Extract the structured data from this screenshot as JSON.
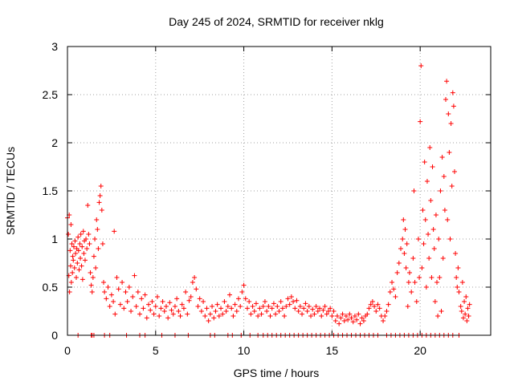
{
  "chart_data": {
    "type": "scatter",
    "title": "Day 245 of 2024, SRMTID for receiver nklg",
    "xlabel": "GPS time / hours",
    "ylabel": "SRMTID / TECUs",
    "xlim": [
      0,
      24
    ],
    "ylim": [
      0,
      3
    ],
    "xticks": [
      0,
      5,
      10,
      15,
      20
    ],
    "xtick_labels": [
      "0",
      "5",
      "10",
      "15",
      "20"
    ],
    "yticks": [
      0,
      0.5,
      1,
      1.5,
      2,
      2.5,
      3
    ],
    "ytick_labels": [
      "0",
      "0.5",
      "1",
      "1.5",
      "2",
      "2.5",
      "3"
    ],
    "grid": true,
    "marker": "+",
    "color": "#ff0000",
    "series": [
      {
        "name": "SRMTID",
        "points": [
          [
            0.0,
            1.22
          ],
          [
            0.05,
            1.05
          ],
          [
            0.08,
            0.62
          ],
          [
            0.1,
            1.25
          ],
          [
            0.12,
            0.45
          ],
          [
            0.15,
            0.88
          ],
          [
            0.18,
            0.72
          ],
          [
            0.2,
            1.15
          ],
          [
            0.22,
            0.55
          ],
          [
            0.25,
            0.95
          ],
          [
            0.28,
            0.65
          ],
          [
            0.3,
            0.82
          ],
          [
            0.33,
            0.78
          ],
          [
            0.36,
            0.92
          ],
          [
            0.4,
            0.7
          ],
          [
            0.43,
            0.98
          ],
          [
            0.46,
            0.85
          ],
          [
            0.5,
            0.6
          ],
          [
            0.53,
            0.9
          ],
          [
            0.56,
            0.75
          ],
          [
            0.6,
            1.02
          ],
          [
            0.63,
            0.88
          ],
          [
            0.66,
            0.68
          ],
          [
            0.7,
            0.95
          ],
          [
            0.73,
            0.8
          ],
          [
            0.76,
            1.05
          ],
          [
            0.8,
            0.72
          ],
          [
            0.83,
            0.92
          ],
          [
            0.86,
            0.58
          ],
          [
            0.9,
            1.08
          ],
          [
            0.93,
            0.85
          ],
          [
            0.96,
            0.98
          ],
          [
            1.0,
            0.78
          ],
          [
            1.05,
            1.0
          ],
          [
            1.1,
            0.9
          ],
          [
            1.15,
            1.35
          ],
          [
            1.2,
            1.05
          ],
          [
            1.25,
            0.95
          ],
          [
            1.3,
            0.65
          ],
          [
            1.35,
            0.52
          ],
          [
            1.4,
            0.45
          ],
          [
            1.45,
            0.6
          ],
          [
            1.5,
            0.82
          ],
          [
            1.55,
            1.0
          ],
          [
            1.6,
            0.7
          ],
          [
            1.65,
            1.2
          ],
          [
            1.7,
            1.1
          ],
          [
            1.75,
            0.9
          ],
          [
            1.8,
            1.38
          ],
          [
            1.85,
            1.45
          ],
          [
            1.9,
            1.55
          ],
          [
            1.95,
            1.3
          ],
          [
            2.0,
            0.95
          ],
          [
            2.05,
            0.55
          ],
          [
            2.1,
            0.45
          ],
          [
            2.2,
            0.38
          ],
          [
            2.3,
            0.5
          ],
          [
            2.4,
            0.3
          ],
          [
            2.5,
            0.42
          ],
          [
            2.6,
            0.35
          ],
          [
            2.65,
            1.08
          ],
          [
            2.7,
            0.22
          ],
          [
            2.8,
            0.6
          ],
          [
            2.9,
            0.48
          ],
          [
            3.0,
            0.32
          ],
          [
            3.1,
            0.55
          ],
          [
            3.2,
            0.28
          ],
          [
            3.3,
            0.45
          ],
          [
            3.4,
            0.35
          ],
          [
            3.5,
            0.5
          ],
          [
            3.6,
            0.25
          ],
          [
            3.7,
            0.4
          ],
          [
            3.8,
            0.62
          ],
          [
            3.9,
            0.3
          ],
          [
            4.0,
            0.45
          ],
          [
            4.1,
            0.22
          ],
          [
            4.2,
            0.38
          ],
          [
            4.3,
            0.28
          ],
          [
            4.4,
            0.42
          ],
          [
            4.5,
            0.18
          ],
          [
            4.6,
            0.32
          ],
          [
            4.7,
            0.26
          ],
          [
            4.8,
            0.35
          ],
          [
            4.9,
            0.22
          ],
          [
            5.0,
            0.3
          ],
          [
            5.1,
            0.4
          ],
          [
            5.2,
            0.2
          ],
          [
            5.3,
            0.28
          ],
          [
            5.4,
            0.35
          ],
          [
            5.5,
            0.25
          ],
          [
            5.6,
            0.3
          ],
          [
            5.7,
            0.18
          ],
          [
            5.8,
            0.34
          ],
          [
            5.9,
            0.26
          ],
          [
            6.0,
            0.22
          ],
          [
            6.1,
            0.3
          ],
          [
            6.2,
            0.38
          ],
          [
            6.3,
            0.25
          ],
          [
            6.4,
            0.2
          ],
          [
            6.5,
            0.32
          ],
          [
            6.6,
            0.28
          ],
          [
            6.7,
            0.45
          ],
          [
            6.8,
            0.22
          ],
          [
            6.9,
            0.36
          ],
          [
            7.0,
            0.4
          ],
          [
            7.1,
            0.55
          ],
          [
            7.2,
            0.6
          ],
          [
            7.3,
            0.48
          ],
          [
            7.4,
            0.3
          ],
          [
            7.5,
            0.38
          ],
          [
            7.6,
            0.25
          ],
          [
            7.7,
            0.35
          ],
          [
            7.8,
            0.2
          ],
          [
            7.9,
            0.28
          ],
          [
            8.0,
            0.15
          ],
          [
            8.1,
            0.22
          ],
          [
            8.2,
            0.3
          ],
          [
            8.3,
            0.18
          ],
          [
            8.4,
            0.25
          ],
          [
            8.5,
            0.32
          ],
          [
            8.6,
            0.2
          ],
          [
            8.7,
            0.28
          ],
          [
            8.8,
            0.22
          ],
          [
            8.9,
            0.35
          ],
          [
            9.0,
            0.25
          ],
          [
            9.1,
            0.3
          ],
          [
            9.2,
            0.42
          ],
          [
            9.3,
            0.28
          ],
          [
            9.4,
            0.2
          ],
          [
            9.5,
            0.32
          ],
          [
            9.6,
            0.25
          ],
          [
            9.7,
            0.38
          ],
          [
            9.8,
            0.3
          ],
          [
            9.9,
            0.45
          ],
          [
            10.0,
            0.52
          ],
          [
            10.1,
            0.38
          ],
          [
            10.2,
            0.28
          ],
          [
            10.3,
            0.35
          ],
          [
            10.4,
            0.22
          ],
          [
            10.5,
            0.3
          ],
          [
            10.6,
            0.25
          ],
          [
            10.7,
            0.33
          ],
          [
            10.8,
            0.2
          ],
          [
            10.9,
            0.28
          ],
          [
            11.0,
            0.22
          ],
          [
            11.1,
            0.3
          ],
          [
            11.2,
            0.35
          ],
          [
            11.3,
            0.25
          ],
          [
            11.4,
            0.3
          ],
          [
            11.5,
            0.2
          ],
          [
            11.6,
            0.28
          ],
          [
            11.7,
            0.33
          ],
          [
            11.8,
            0.22
          ],
          [
            11.9,
            0.3
          ],
          [
            12.0,
            0.25
          ],
          [
            12.1,
            0.35
          ],
          [
            12.2,
            0.28
          ],
          [
            12.3,
            0.2
          ],
          [
            12.4,
            0.3
          ],
          [
            12.5,
            0.38
          ],
          [
            12.6,
            0.32
          ],
          [
            12.7,
            0.4
          ],
          [
            12.8,
            0.35
          ],
          [
            12.9,
            0.28
          ],
          [
            13.0,
            0.36
          ],
          [
            13.1,
            0.25
          ],
          [
            13.2,
            0.3
          ],
          [
            13.3,
            0.22
          ],
          [
            13.4,
            0.28
          ],
          [
            13.5,
            0.33
          ],
          [
            13.6,
            0.25
          ],
          [
            13.7,
            0.3
          ],
          [
            13.8,
            0.2
          ],
          [
            13.9,
            0.27
          ],
          [
            14.0,
            0.22
          ],
          [
            14.1,
            0.3
          ],
          [
            14.2,
            0.25
          ],
          [
            14.3,
            0.28
          ],
          [
            14.4,
            0.2
          ],
          [
            14.5,
            0.26
          ],
          [
            14.6,
            0.3
          ],
          [
            14.7,
            0.22
          ],
          [
            14.8,
            0.25
          ],
          [
            14.9,
            0.28
          ],
          [
            15.0,
            0.2
          ],
          [
            15.1,
            0.25
          ],
          [
            15.2,
            0.15
          ],
          [
            15.3,
            0.2
          ],
          [
            15.4,
            0.12
          ],
          [
            15.5,
            0.18
          ],
          [
            15.6,
            0.22
          ],
          [
            15.7,
            0.15
          ],
          [
            15.8,
            0.2
          ],
          [
            15.9,
            0.16
          ],
          [
            16.0,
            0.22
          ],
          [
            16.1,
            0.18
          ],
          [
            16.2,
            0.14
          ],
          [
            16.3,
            0.2
          ],
          [
            16.4,
            0.16
          ],
          [
            16.5,
            0.22
          ],
          [
            16.6,
            0.12
          ],
          [
            16.7,
            0.18
          ],
          [
            16.8,
            0.15
          ],
          [
            16.9,
            0.2
          ],
          [
            17.0,
            0.22
          ],
          [
            17.1,
            0.28
          ],
          [
            17.2,
            0.32
          ],
          [
            17.3,
            0.35
          ],
          [
            17.4,
            0.3
          ],
          [
            17.5,
            0.25
          ],
          [
            17.6,
            0.32
          ],
          [
            17.7,
            0.28
          ],
          [
            17.8,
            0.2
          ],
          [
            17.9,
            0.15
          ],
          [
            18.0,
            0.2
          ],
          [
            18.1,
            0.25
          ],
          [
            18.2,
            0.32
          ],
          [
            18.3,
            0.45
          ],
          [
            18.4,
            0.55
          ],
          [
            18.5,
            0.48
          ],
          [
            18.6,
            0.4
          ],
          [
            18.7,
            0.65
          ],
          [
            18.8,
            0.75
          ],
          [
            18.9,
            0.9
          ],
          [
            19.0,
            1.0
          ],
          [
            19.05,
            1.2
          ],
          [
            19.1,
            0.85
          ],
          [
            19.15,
            1.1
          ],
          [
            19.2,
            0.7
          ],
          [
            19.25,
            0.95
          ],
          [
            19.3,
            0.3
          ],
          [
            19.35,
            0.55
          ],
          [
            19.4,
            0.65
          ],
          [
            19.5,
            0.45
          ],
          [
            19.6,
            0.8
          ],
          [
            19.65,
            1.5
          ],
          [
            19.7,
            0.55
          ],
          [
            19.8,
            0.35
          ],
          [
            19.9,
            1.0
          ],
          [
            19.95,
            0.6
          ],
          [
            20.0,
            2.22
          ],
          [
            20.05,
            2.8
          ],
          [
            20.1,
            0.7
          ],
          [
            20.15,
            1.3
          ],
          [
            20.2,
            0.95
          ],
          [
            20.25,
            1.8
          ],
          [
            20.3,
            1.2
          ],
          [
            20.35,
            0.5
          ],
          [
            20.4,
            1.6
          ],
          [
            20.45,
            1.05
          ],
          [
            20.5,
            0.8
          ],
          [
            20.55,
            1.95
          ],
          [
            20.6,
            1.4
          ],
          [
            20.65,
            0.6
          ],
          [
            20.7,
            1.75
          ],
          [
            20.75,
            1.1
          ],
          [
            20.8,
            0.9
          ],
          [
            20.85,
            0.35
          ],
          [
            20.9,
            1.25
          ],
          [
            20.95,
            0.55
          ],
          [
            21.0,
            0.2
          ],
          [
            21.05,
            1.0
          ],
          [
            21.1,
            0.6
          ],
          [
            21.15,
            1.5
          ],
          [
            21.2,
            0.25
          ],
          [
            21.25,
            1.85
          ],
          [
            21.3,
            0.8
          ],
          [
            21.35,
            1.65
          ],
          [
            21.4,
            1.3
          ],
          [
            21.45,
            2.45
          ],
          [
            21.5,
            2.64
          ],
          [
            21.55,
            1.2
          ],
          [
            21.6,
            2.3
          ],
          [
            21.65,
            1.9
          ],
          [
            21.7,
            1.0
          ],
          [
            21.75,
            2.2
          ],
          [
            21.8,
            1.55
          ],
          [
            21.85,
            2.52
          ],
          [
            21.9,
            2.38
          ],
          [
            21.95,
            1.7
          ],
          [
            22.0,
            0.85
          ],
          [
            22.05,
            0.6
          ],
          [
            22.1,
            0.5
          ],
          [
            22.15,
            0.7
          ],
          [
            22.2,
            0.45
          ],
          [
            22.3,
            0.3
          ],
          [
            22.35,
            0.25
          ],
          [
            22.4,
            0.55
          ],
          [
            22.45,
            0.18
          ],
          [
            22.5,
            0.35
          ],
          [
            22.55,
            0.22
          ],
          [
            22.6,
            0.4
          ],
          [
            22.65,
            0.15
          ],
          [
            22.7,
            0.28
          ],
          [
            22.75,
            0.2
          ],
          [
            22.8,
            0.32
          ]
        ]
      }
    ],
    "zero_points_x": [
      0.6,
      1.35,
      1.4,
      1.5,
      2.1,
      2.4,
      3.35,
      4.1,
      4.4,
      5.35,
      6.1,
      6.85,
      8.1,
      8.35,
      9.1,
      9.35,
      9.85,
      10.35,
      10.8,
      11.1,
      11.35,
      11.6,
      11.85,
      12.1,
      12.35,
      12.6,
      12.85,
      13.1,
      13.35,
      13.6,
      13.85,
      14.1,
      14.35,
      14.6,
      14.85,
      15.1,
      15.35,
      15.6,
      15.85,
      16.1,
      16.35,
      16.6,
      16.85,
      17.1,
      17.35,
      17.6,
      18.1,
      18.35,
      18.6,
      18.85,
      19.1,
      19.35,
      19.6,
      19.85,
      20.1,
      20.35,
      20.6,
      20.85,
      21.1,
      21.35,
      21.6,
      21.85,
      22.2
    ]
  }
}
